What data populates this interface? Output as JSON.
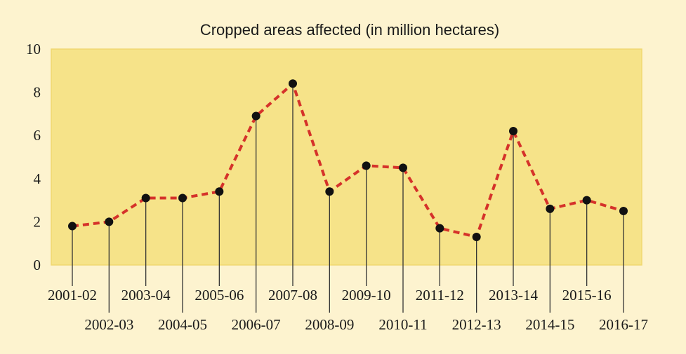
{
  "chart_data": {
    "type": "line",
    "title": "Cropped areas affected (in million hectares)",
    "xlabel": "",
    "ylabel": "",
    "ylim": [
      0,
      10
    ],
    "yticks": [
      "0",
      "2",
      "4",
      "6",
      "8",
      "10"
    ],
    "grid": false,
    "categories": [
      "2001-02",
      "2002-03",
      "2003-04",
      "2004-05",
      "2005-06",
      "2006-07",
      "2007-08",
      "2008-09",
      "2009-10",
      "2010-11",
      "2011-12",
      "2012-13",
      "2013-14",
      "2014-15",
      "2015-16",
      "2016-17"
    ],
    "series": [
      {
        "values": [
          1.8,
          2.0,
          3.1,
          3.1,
          3.4,
          6.9,
          8.4,
          3.4,
          4.6,
          4.5,
          1.7,
          1.3,
          6.2,
          2.6,
          3.0,
          2.5
        ]
      }
    ],
    "colors": {
      "background": "#fdf3cf",
      "plot_area": "#f6e389",
      "plot_border": "#f0d870",
      "line": "#d5322a",
      "marker": "#111111",
      "stem": "#333333"
    }
  }
}
